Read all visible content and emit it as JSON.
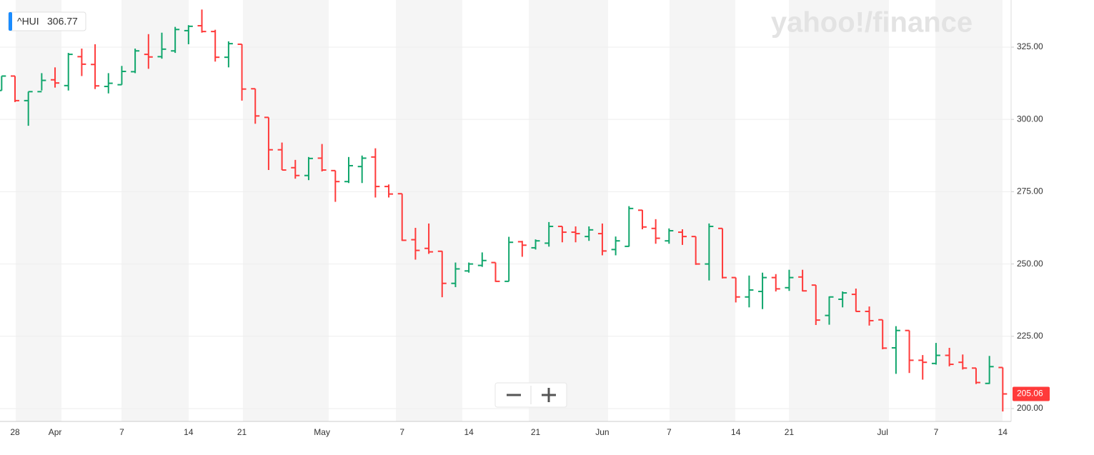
{
  "chart_data": {
    "type": "ohlc",
    "symbol": "^HUI",
    "quote": 306.77,
    "watermark": "yahoo!/finance",
    "last_price": {
      "value": 205.06,
      "label": "205.06"
    },
    "up_color": "#10a66c",
    "down_color": "#ff3a3a",
    "grid": true,
    "ylim": [
      195.55,
      341.3
    ],
    "yticks": [
      {
        "value": 200,
        "label": "200.00"
      },
      {
        "value": 225,
        "label": "225.00"
      },
      {
        "value": 250,
        "label": "250.00"
      },
      {
        "value": 275,
        "label": "275.00"
      },
      {
        "value": 300,
        "label": "300.00"
      },
      {
        "value": 325,
        "label": "325.00"
      }
    ],
    "categories": [
      null,
      "28",
      null,
      null,
      "Apr",
      null,
      null,
      null,
      null,
      "7",
      null,
      null,
      null,
      null,
      "14",
      null,
      null,
      null,
      "21",
      null,
      null,
      null,
      null,
      null,
      "May",
      null,
      null,
      null,
      null,
      null,
      "7",
      null,
      null,
      null,
      null,
      "14",
      null,
      null,
      null,
      null,
      "21",
      null,
      null,
      null,
      null,
      "Jun",
      null,
      null,
      null,
      null,
      "7",
      null,
      null,
      null,
      null,
      "14",
      null,
      null,
      null,
      "21",
      null,
      null,
      null,
      null,
      null,
      null,
      "Jul",
      null,
      null,
      null,
      "7",
      null,
      null,
      null,
      null,
      "14"
    ],
    "open": [
      310,
      315,
      306.5,
      309.6,
      313.7,
      311.7,
      321.7,
      319,
      311.4,
      312,
      316.5,
      322.5,
      321.7,
      323.7,
      330.7,
      332.4,
      330.4,
      321.5,
      326,
      310.6,
      300.7,
      289.5,
      283.3,
      280.6,
      286.6,
      282.3,
      278.5,
      283.7,
      287,
      276.8,
      274.3,
      258.4,
      255.4,
      254.4,
      243.3,
      247.6,
      249.5,
      250.5,
      244,
      257.7,
      255.6,
      257.2,
      263,
      261,
      259.5,
      260.5,
      255,
      256.1,
      268.6,
      262.3,
      258,
      261,
      259.5,
      250,
      262.3,
      245.3,
      238.6,
      240.5,
      245.3,
      241.8,
      245.5,
      242.7,
      232.2,
      237.8,
      239.5,
      233.6,
      230.7,
      221,
      227,
      216.7,
      215.6,
      218.4,
      216,
      214,
      208.7,
      214.2
    ],
    "high": [
      315,
      315,
      309.6,
      316,
      318,
      323,
      324.5,
      326,
      316,
      318.5,
      324.5,
      329.5,
      330,
      332,
      332.6,
      338,
      331,
      327,
      326,
      310.6,
      300.7,
      292,
      286,
      287,
      291.5,
      282.3,
      287,
      287.5,
      290,
      277.5,
      274.3,
      262.5,
      264,
      254.5,
      250.5,
      250.5,
      254,
      250.5,
      259.4,
      258,
      258.5,
      264.5,
      263,
      263,
      263,
      264,
      259.5,
      270,
      268.7,
      265.5,
      262.3,
      262,
      259.5,
      264,
      262.3,
      245.3,
      246,
      247,
      246.5,
      248,
      248,
      242.7,
      238.8,
      240.5,
      241.5,
      235.3,
      230.7,
      228.5,
      227,
      218.5,
      222.7,
      221,
      218.7,
      214,
      218.2,
      214.2
    ],
    "low": [
      310,
      306,
      297.8,
      310,
      311,
      310,
      315,
      310.5,
      309,
      312,
      316,
      317.5,
      321,
      323,
      326,
      330,
      320,
      318,
      306.5,
      298.5,
      282.5,
      282.5,
      279.5,
      279,
      282,
      271.5,
      278,
      278,
      273,
      273,
      258,
      251.5,
      253.5,
      238.5,
      242,
      247,
      249,
      243.8,
      244,
      252.5,
      255,
      256,
      257.5,
      257.5,
      258,
      253,
      253,
      256,
      262,
      257,
      257,
      256.6,
      249.7,
      244.3,
      245,
      236.7,
      235,
      234.4,
      240.5,
      240.7,
      240.5,
      228.9,
      229,
      235,
      233.5,
      228.7,
      220.5,
      212,
      212.3,
      210,
      215.2,
      214.6,
      213.5,
      208.5,
      208.5,
      199
    ],
    "close": [
      315,
      306.5,
      309.6,
      313.5,
      312.6,
      322.5,
      319.1,
      311.6,
      312.5,
      316.6,
      323.7,
      321.6,
      324.3,
      331.1,
      332.2,
      330.4,
      321.5,
      326.2,
      310.5,
      301.2,
      289.5,
      282.5,
      280.6,
      286.5,
      282.5,
      278.5,
      284,
      286.6,
      276.8,
      274.2,
      258.2,
      254.7,
      254.2,
      243.3,
      248.3,
      250,
      251.2,
      244,
      257.5,
      256.5,
      258,
      263,
      261,
      260.5,
      261.8,
      254.5,
      258,
      269.2,
      262.8,
      258.9,
      261.5,
      259.5,
      250,
      263,
      245.3,
      238.6,
      241,
      245.3,
      241.4,
      245.3,
      240.7,
      230.6,
      238.6,
      240,
      233.6,
      230.4,
      220.9,
      227,
      216.7,
      216,
      218.4,
      215.3,
      214,
      209,
      214.5,
      205.06
    ]
  }
}
